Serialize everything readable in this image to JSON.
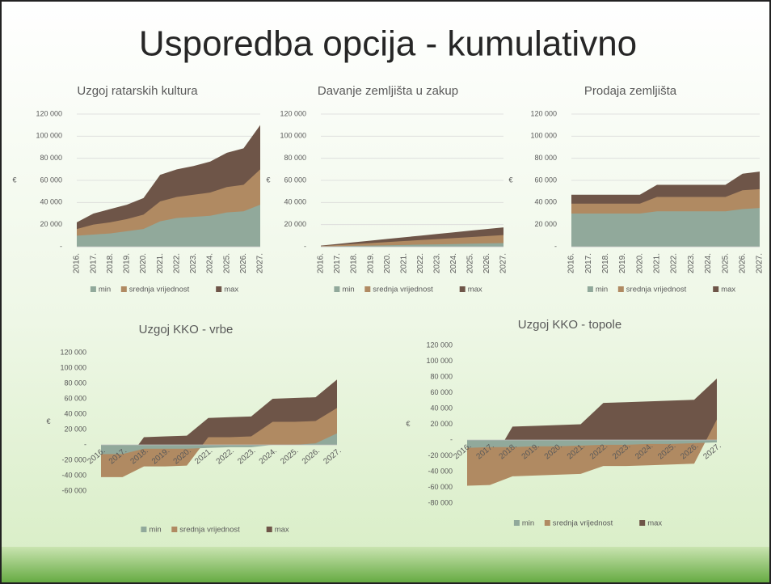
{
  "slide_title": "Usporedba opcija - kumulativno",
  "chart_data": [
    {
      "type": "area",
      "title": "Uzgoj ratarskih kultura",
      "y_label": "€",
      "categories": [
        "2016.",
        "2017.",
        "2018.",
        "2019.",
        "2020.",
        "2021.",
        "2022.",
        "2023.",
        "2024.",
        "2025.",
        "2026.",
        "2027."
      ],
      "series": [
        {
          "name": "min",
          "color": "#91a99b",
          "values": [
            10000,
            11000,
            12000,
            14000,
            16000,
            23000,
            26000,
            27000,
            28000,
            31000,
            32000,
            38000
          ]
        },
        {
          "name": "srednja vrijednost",
          "color": "#b08a62",
          "values": [
            16000,
            20000,
            22000,
            25000,
            29000,
            41000,
            45000,
            47000,
            49000,
            54000,
            56000,
            70000
          ]
        },
        {
          "name": "max",
          "color": "#6e5548",
          "values": [
            22000,
            30000,
            34000,
            38000,
            44000,
            65000,
            70000,
            73000,
            77000,
            85000,
            89000,
            110000
          ]
        }
      ],
      "ylim": [
        0,
        120000
      ],
      "yticks": [
        {
          "value": 0,
          "label": "-"
        },
        {
          "value": 20000,
          "label": "20 000"
        },
        {
          "value": 40000,
          "label": "40 000"
        },
        {
          "value": 60000,
          "label": "60 000"
        },
        {
          "value": 80000,
          "label": "80 000"
        },
        {
          "value": 100000,
          "label": "100 000"
        },
        {
          "value": 120000,
          "label": "120 000"
        }
      ],
      "grid": true
    },
    {
      "type": "area",
      "title": "Davanje zemljišta u zakup",
      "y_label": "€",
      "categories": [
        "2016.",
        "2017.",
        "2018.",
        "2019.",
        "2020.",
        "2021.",
        "2022.",
        "2023.",
        "2024.",
        "2025.",
        "2026.",
        "2027."
      ],
      "series": [
        {
          "name": "min",
          "color": "#91a99b",
          "values": [
            200,
            500,
            800,
            1000,
            1300,
            1600,
            1900,
            2100,
            2400,
            2700,
            3000,
            3300
          ]
        },
        {
          "name": "srednja vrijednost",
          "color": "#b08a62",
          "values": [
            600,
            1500,
            2400,
            3300,
            4200,
            5100,
            6000,
            6900,
            7800,
            8700,
            9600,
            10500
          ]
        },
        {
          "name": "max",
          "color": "#6e5548",
          "values": [
            1000,
            2500,
            4000,
            5500,
            7000,
            8500,
            10000,
            11500,
            13000,
            14500,
            16000,
            17500
          ]
        }
      ],
      "ylim": [
        0,
        120000
      ],
      "yticks": [
        {
          "value": 0,
          "label": "-"
        },
        {
          "value": 20000,
          "label": "20 000"
        },
        {
          "value": 40000,
          "label": "40 000"
        },
        {
          "value": 60000,
          "label": "60 000"
        },
        {
          "value": 80000,
          "label": "80 000"
        },
        {
          "value": 100000,
          "label": "100 000"
        },
        {
          "value": 120000,
          "label": "120 000"
        }
      ],
      "grid": true
    },
    {
      "type": "area",
      "title": "Prodaja zemljišta",
      "y_label": "€",
      "categories": [
        "2016.",
        "2017.",
        "2018.",
        "2019.",
        "2020.",
        "2021.",
        "2022.",
        "2023.",
        "2024.",
        "2025.",
        "2026.",
        "2027."
      ],
      "series": [
        {
          "name": "min",
          "color": "#91a99b",
          "values": [
            30000,
            30000,
            30000,
            30000,
            30000,
            32000,
            32000,
            32000,
            32000,
            32000,
            34000,
            35000
          ]
        },
        {
          "name": "srednja vrijednost",
          "color": "#b08a62",
          "values": [
            39000,
            39000,
            39000,
            39000,
            39000,
            45000,
            45000,
            45000,
            45000,
            45000,
            51000,
            52000
          ]
        },
        {
          "name": "max",
          "color": "#6e5548",
          "values": [
            47000,
            47000,
            47000,
            47000,
            47000,
            56000,
            56000,
            56000,
            56000,
            56000,
            66000,
            68000
          ]
        }
      ],
      "ylim": [
        0,
        120000
      ],
      "yticks": [
        {
          "value": 0,
          "label": "-"
        },
        {
          "value": 20000,
          "label": "20 000"
        },
        {
          "value": 40000,
          "label": "40 000"
        },
        {
          "value": 60000,
          "label": "60 000"
        },
        {
          "value": 80000,
          "label": "80 000"
        },
        {
          "value": 100000,
          "label": "100 000"
        },
        {
          "value": 120000,
          "label": "120 000"
        }
      ],
      "grid": true
    },
    {
      "type": "area",
      "title": "Uzgoj KKO - vrbe",
      "y_label": "€",
      "categories": [
        "2016.",
        "2017.",
        "2018.",
        "2019.",
        "2020.",
        "2021.",
        "2022.",
        "2023.",
        "2024.",
        "2025.",
        "2026.",
        "2027."
      ],
      "series": [
        {
          "name": "min",
          "color": "#91a99b",
          "values": [
            -12000,
            -12000,
            -5000,
            -5000,
            -5000,
            -4000,
            -3000,
            -3000,
            0,
            0,
            2000,
            15000
          ]
        },
        {
          "name": "srednja vrijednost",
          "color": "#b08a62",
          "values": [
            -42000,
            -42000,
            -28000,
            -28000,
            -27000,
            10000,
            10000,
            11000,
            30000,
            30000,
            31000,
            48000
          ]
        },
        {
          "name": "max",
          "color": "#6e5548",
          "values": [
            -28000,
            -28000,
            10000,
            11000,
            12000,
            35000,
            36000,
            37000,
            60000,
            61000,
            62000,
            85000
          ]
        }
      ],
      "ylim": [
        -60000,
        120000
      ],
      "yticks": [
        {
          "value": -60000,
          "label": "-60 000"
        },
        {
          "value": -40000,
          "label": "-40 000"
        },
        {
          "value": -20000,
          "label": "-20 000"
        },
        {
          "value": 0,
          "label": "-"
        },
        {
          "value": 20000,
          "label": "20 000"
        },
        {
          "value": 40000,
          "label": "40 000"
        },
        {
          "value": 60000,
          "label": "60 000"
        },
        {
          "value": 80000,
          "label": "80 000"
        },
        {
          "value": 100000,
          "label": "100 000"
        },
        {
          "value": 120000,
          "label": "120 000"
        }
      ],
      "grid": false
    },
    {
      "type": "area",
      "title": "Uzgoj KKO - topole",
      "y_label": "€",
      "categories": [
        "2016.",
        "2017.",
        "2018.",
        "2019.",
        "2020.",
        "2021.",
        "2022.",
        "2023.",
        "2024.",
        "2025.",
        "2026.",
        "2027."
      ],
      "series": [
        {
          "name": "min",
          "color": "#91a99b",
          "values": [
            -10000,
            -9000,
            -9000,
            -8000,
            -8000,
            -7000,
            -6000,
            -6000,
            -5000,
            -5000,
            -4000,
            -3000
          ]
        },
        {
          "name": "srednja vrijednost",
          "color": "#b08a62",
          "values": [
            -58000,
            -57000,
            -46000,
            -45000,
            -44000,
            -43000,
            -33000,
            -33000,
            -32000,
            -31000,
            -30000,
            26000
          ]
        },
        {
          "name": "max",
          "color": "#6e5548",
          "values": [
            -33000,
            -32000,
            17000,
            18000,
            19000,
            20000,
            47000,
            48000,
            49000,
            50000,
            51000,
            78000
          ]
        }
      ],
      "ylim": [
        -80000,
        120000
      ],
      "yticks": [
        {
          "value": -80000,
          "label": "-80 000"
        },
        {
          "value": -60000,
          "label": "-60 000"
        },
        {
          "value": -40000,
          "label": "-40 000"
        },
        {
          "value": -20000,
          "label": "-20 000"
        },
        {
          "value": 0,
          "label": "-"
        },
        {
          "value": 20000,
          "label": "20 000"
        },
        {
          "value": 40000,
          "label": "40 000"
        },
        {
          "value": 60000,
          "label": "60 000"
        },
        {
          "value": 80000,
          "label": "80 000"
        },
        {
          "value": 100000,
          "label": "100 000"
        },
        {
          "value": 120000,
          "label": "120 000"
        }
      ],
      "grid": false
    }
  ]
}
